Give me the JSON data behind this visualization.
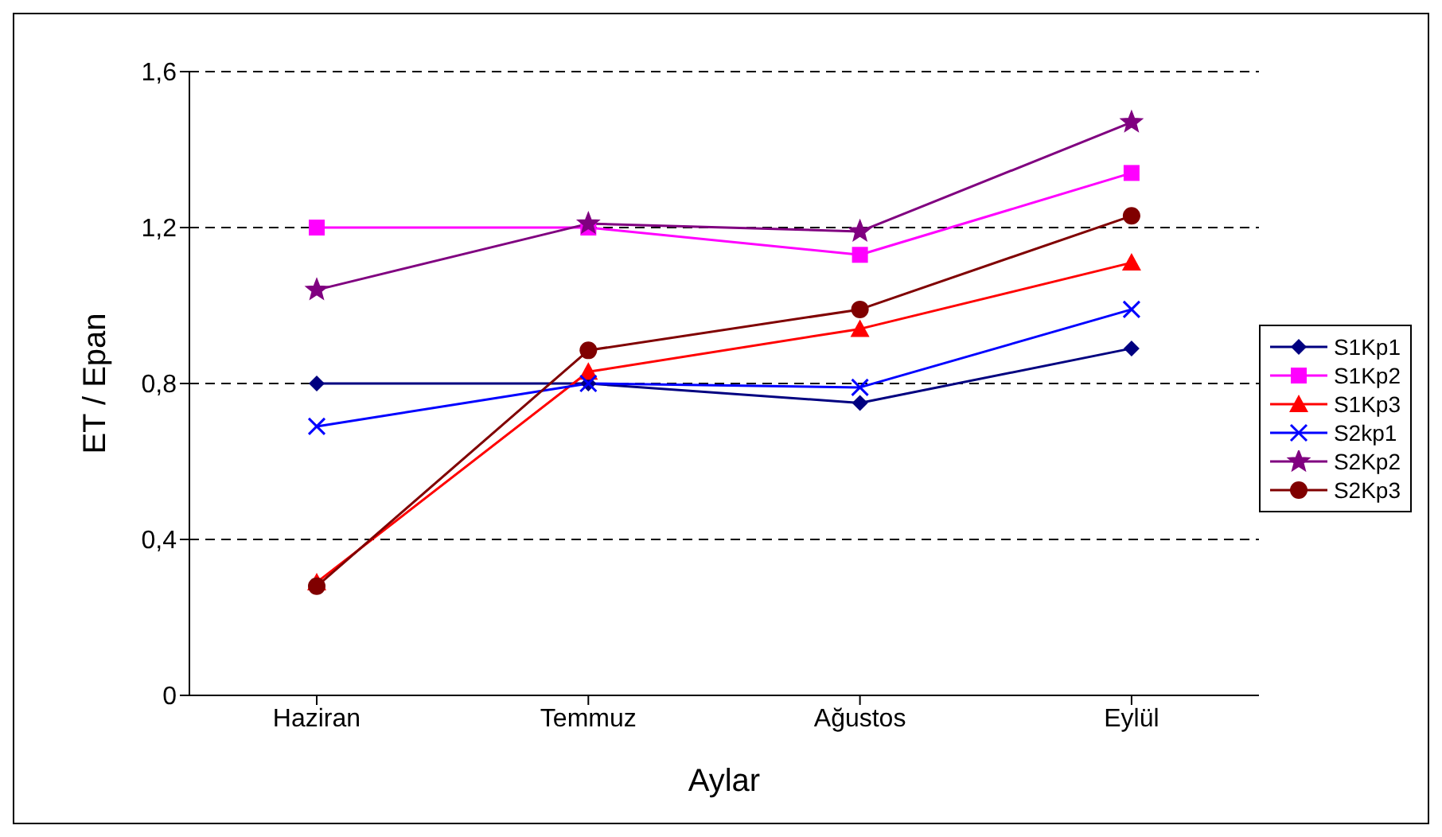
{
  "chart_data": {
    "type": "line",
    "xlabel": "Aylar",
    "ylabel": "ET  / Epan",
    "categories": [
      "Haziran",
      "Temmuz",
      "Ağustos",
      "Eylül"
    ],
    "ylim": [
      0,
      1.6
    ],
    "yticks": [
      {
        "value": 0,
        "label": "0"
      },
      {
        "value": 0.4,
        "label": "0,4"
      },
      {
        "value": 0.8,
        "label": "0,8"
      },
      {
        "value": 1.2,
        "label": "1,2"
      },
      {
        "value": 1.6,
        "label": "1,6"
      }
    ],
    "grid": "y",
    "legend": "right",
    "line_style": "solid",
    "series": [
      {
        "name": "S1Kp1",
        "color": "#000080",
        "marker": "diamond",
        "values": [
          0.8,
          0.8,
          0.75,
          0.89
        ]
      },
      {
        "name": "S1Kp2",
        "color": "#ff00ff",
        "marker": "square",
        "values": [
          1.2,
          1.2,
          1.13,
          1.34
        ]
      },
      {
        "name": "S1Kp3",
        "color": "#ff0000",
        "marker": "triangle",
        "values": [
          0.29,
          0.83,
          0.94,
          1.11
        ]
      },
      {
        "name": "S2kp1",
        "color": "#0000ff",
        "marker": "cross",
        "values": [
          0.69,
          0.8,
          0.79,
          0.99
        ]
      },
      {
        "name": "S2Kp2",
        "color": "#800080",
        "marker": "star",
        "values": [
          1.04,
          1.21,
          1.19,
          1.47
        ]
      },
      {
        "name": "S2Kp3",
        "color": "#800000",
        "marker": "circle",
        "values": [
          0.28,
          0.885,
          0.99,
          1.23
        ]
      }
    ]
  }
}
